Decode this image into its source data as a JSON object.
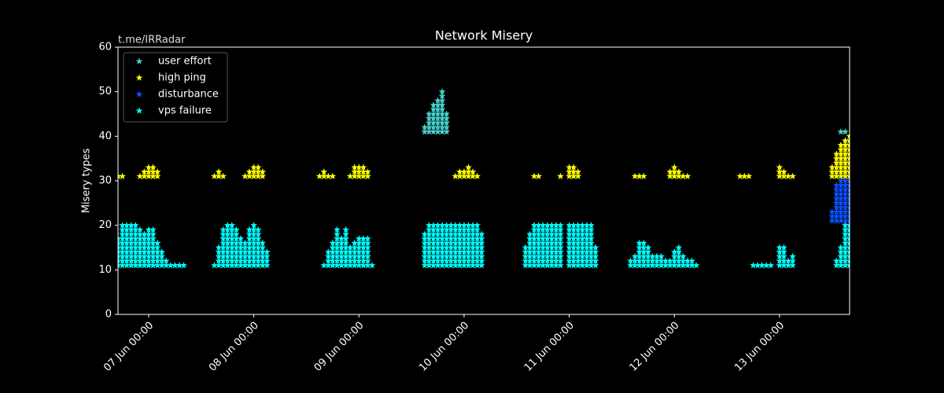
{
  "chart_data": {
    "type": "scatter",
    "title": "Network Misery",
    "annotation": "t.me/IRRadar",
    "ylabel": "Misery types",
    "xlim": [
      "06 Jun 17:00",
      "13 Jun 16:00"
    ],
    "xticks": [
      "07 Jun 00:00",
      "08 Jun 00:00",
      "09 Jun 00:00",
      "10 Jun 00:00",
      "11 Jun 00:00",
      "12 Jun 00:00",
      "13 Jun 00:00"
    ],
    "ylim": [
      0,
      60
    ],
    "yticks": [
      0,
      10,
      20,
      30,
      40,
      50,
      60
    ],
    "legend": "upper left",
    "marker": "star",
    "series": [
      {
        "name": "user effort",
        "color": "#48d1cc",
        "base": 41,
        "x": [
          "09 Jun 15:00",
          "09 Jun 16:00",
          "09 Jun 17:00",
          "09 Jun 18:00",
          "09 Jun 19:00",
          "09 Jun 20:00",
          "13 Jun 14:00",
          "13 Jun 15:00"
        ],
        "values": [
          42,
          45,
          47,
          48,
          50,
          45,
          41,
          41
        ]
      },
      {
        "name": "high ping",
        "color": "#ffff00",
        "base": 31,
        "x": [
          "06 Jun 17:00",
          "06 Jun 18:00",
          "06 Jun 22:00",
          "06 Jun 23:00",
          "07 Jun 00:00",
          "07 Jun 01:00",
          "07 Jun 02:00",
          "07 Jun 15:00",
          "07 Jun 16:00",
          "07 Jun 17:00",
          "07 Jun 22:00",
          "07 Jun 23:00",
          "08 Jun 00:00",
          "08 Jun 01:00",
          "08 Jun 02:00",
          "08 Jun 15:00",
          "08 Jun 16:00",
          "08 Jun 17:00",
          "08 Jun 18:00",
          "08 Jun 22:00",
          "08 Jun 23:00",
          "09 Jun 00:00",
          "09 Jun 01:00",
          "09 Jun 02:00",
          "09 Jun 22:00",
          "09 Jun 23:00",
          "10 Jun 00:00",
          "10 Jun 01:00",
          "10 Jun 02:00",
          "10 Jun 03:00",
          "10 Jun 16:00",
          "10 Jun 17:00",
          "10 Jun 22:00",
          "11 Jun 00:00",
          "11 Jun 01:00",
          "11 Jun 02:00",
          "11 Jun 15:00",
          "11 Jun 16:00",
          "11 Jun 17:00",
          "11 Jun 23:00",
          "12 Jun 00:00",
          "12 Jun 01:00",
          "12 Jun 02:00",
          "12 Jun 03:00",
          "12 Jun 15:00",
          "12 Jun 16:00",
          "12 Jun 17:00",
          "13 Jun 00:00",
          "13 Jun 01:00",
          "13 Jun 02:00",
          "13 Jun 03:00",
          "13 Jun 12:00",
          "13 Jun 13:00",
          "13 Jun 14:00",
          "13 Jun 15:00",
          "13 Jun 16:00"
        ],
        "values": [
          31,
          31,
          31,
          32,
          33,
          33,
          32,
          31,
          32,
          31,
          31,
          32,
          33,
          33,
          32,
          31,
          32,
          31,
          31,
          31,
          33,
          33,
          33,
          32,
          31,
          32,
          32,
          33,
          32,
          31,
          31,
          31,
          31,
          33,
          33,
          32,
          31,
          31,
          31,
          32,
          33,
          32,
          31,
          31,
          31,
          31,
          31,
          33,
          32,
          31,
          31,
          33,
          36,
          38,
          39,
          40
        ]
      },
      {
        "name": "disturbance",
        "color": "#0a50ff",
        "base": 21,
        "x": [
          "13 Jun 12:00",
          "13 Jun 13:00",
          "13 Jun 14:00",
          "13 Jun 15:00",
          "13 Jun 16:00"
        ],
        "values": [
          23,
          29,
          30,
          30,
          30
        ]
      },
      {
        "name": "vps failure",
        "color": "#00ffff",
        "base": 11,
        "x": [
          "06 Jun 17:00",
          "06 Jun 18:00",
          "06 Jun 19:00",
          "06 Jun 20:00",
          "06 Jun 21:00",
          "06 Jun 22:00",
          "06 Jun 23:00",
          "07 Jun 00:00",
          "07 Jun 01:00",
          "07 Jun 02:00",
          "07 Jun 03:00",
          "07 Jun 04:00",
          "07 Jun 05:00",
          "07 Jun 06:00",
          "07 Jun 07:00",
          "07 Jun 08:00",
          "07 Jun 15:00",
          "07 Jun 16:00",
          "07 Jun 17:00",
          "07 Jun 18:00",
          "07 Jun 19:00",
          "07 Jun 20:00",
          "07 Jun 21:00",
          "07 Jun 22:00",
          "07 Jun 23:00",
          "08 Jun 00:00",
          "08 Jun 01:00",
          "08 Jun 02:00",
          "08 Jun 03:00",
          "08 Jun 16:00",
          "08 Jun 17:00",
          "08 Jun 18:00",
          "08 Jun 19:00",
          "08 Jun 20:00",
          "08 Jun 21:00",
          "08 Jun 22:00",
          "08 Jun 23:00",
          "09 Jun 00:00",
          "09 Jun 01:00",
          "09 Jun 02:00",
          "09 Jun 03:00",
          "09 Jun 15:00",
          "09 Jun 16:00",
          "09 Jun 17:00",
          "09 Jun 18:00",
          "09 Jun 19:00",
          "09 Jun 20:00",
          "09 Jun 21:00",
          "09 Jun 22:00",
          "09 Jun 23:00",
          "10 Jun 00:00",
          "10 Jun 01:00",
          "10 Jun 02:00",
          "10 Jun 03:00",
          "10 Jun 04:00",
          "10 Jun 14:00",
          "10 Jun 15:00",
          "10 Jun 16:00",
          "10 Jun 17:00",
          "10 Jun 18:00",
          "10 Jun 19:00",
          "10 Jun 20:00",
          "10 Jun 21:00",
          "10 Jun 22:00",
          "11 Jun 00:00",
          "11 Jun 01:00",
          "11 Jun 02:00",
          "11 Jun 03:00",
          "11 Jun 04:00",
          "11 Jun 05:00",
          "11 Jun 06:00",
          "11 Jun 14:00",
          "11 Jun 15:00",
          "11 Jun 16:00",
          "11 Jun 17:00",
          "11 Jun 18:00",
          "11 Jun 19:00",
          "11 Jun 20:00",
          "11 Jun 21:00",
          "11 Jun 22:00",
          "11 Jun 23:00",
          "12 Jun 00:00",
          "12 Jun 01:00",
          "12 Jun 02:00",
          "12 Jun 03:00",
          "12 Jun 04:00",
          "12 Jun 05:00",
          "12 Jun 18:00",
          "12 Jun 19:00",
          "12 Jun 20:00",
          "12 Jun 21:00",
          "12 Jun 22:00",
          "13 Jun 00:00",
          "13 Jun 01:00",
          "13 Jun 02:00",
          "13 Jun 03:00",
          "13 Jun 13:00",
          "13 Jun 14:00",
          "13 Jun 15:00",
          "13 Jun 16:00"
        ],
        "values": [
          17,
          20,
          20,
          20,
          20,
          19,
          18,
          19,
          19,
          16,
          14,
          12,
          11,
          11,
          11,
          11,
          11,
          15,
          19,
          20,
          20,
          19,
          17,
          16,
          19,
          20,
          19,
          16,
          14,
          11,
          14,
          16,
          19,
          17,
          19,
          15,
          16,
          17,
          17,
          17,
          11,
          18,
          20,
          20,
          20,
          20,
          20,
          20,
          20,
          20,
          20,
          20,
          20,
          20,
          18,
          15,
          18,
          20,
          20,
          20,
          20,
          20,
          20,
          20,
          20,
          20,
          20,
          20,
          20,
          20,
          15,
          12,
          13,
          16,
          16,
          15,
          13,
          13,
          13,
          12,
          12,
          14,
          15,
          13,
          12,
          12,
          11,
          11,
          11,
          11,
          11,
          11,
          15,
          15,
          12,
          13,
          12,
          15,
          20,
          20
        ]
      }
    ]
  }
}
